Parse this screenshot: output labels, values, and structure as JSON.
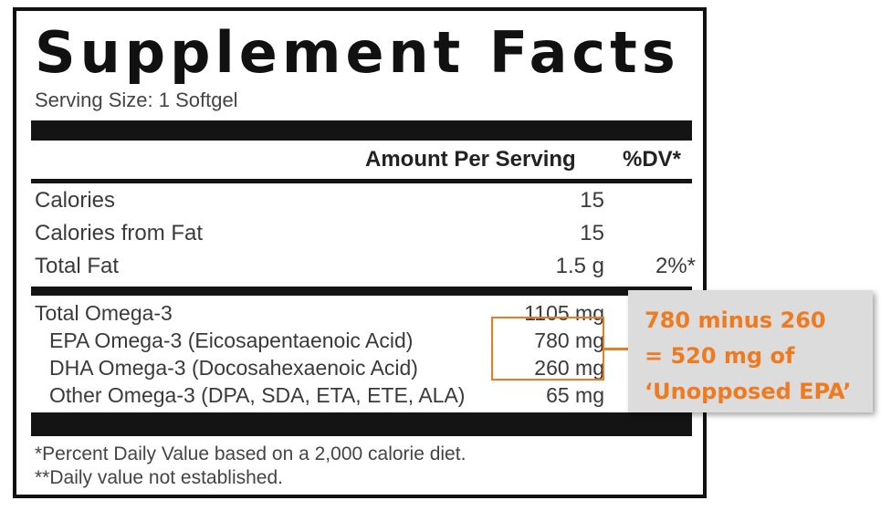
{
  "label": {
    "title": "Supplement Facts",
    "serving_size": "Serving Size: 1 Softgel",
    "header": {
      "amount": "Amount Per Serving",
      "dv": "%DV*"
    },
    "rows": [
      {
        "name": "Calories",
        "amount": "15",
        "dv": ""
      },
      {
        "name": "Calories from Fat",
        "amount": "15",
        "dv": ""
      },
      {
        "name": "Total Fat",
        "amount": "1.5 g",
        "dv": "2%*"
      }
    ],
    "omega": [
      {
        "name": "Total Omega-3",
        "amount": "1105 mg"
      },
      {
        "name": "EPA Omega-3 (Eicosapentaenoic Acid)",
        "amount": "780 mg"
      },
      {
        "name": "DHA Omega-3 (Docosahexaenoic Acid)",
        "amount": "260 mg"
      },
      {
        "name": "Other Omega-3 (DPA, SDA, ETA, ETE, ALA)",
        "amount": "65 mg"
      }
    ],
    "footnotes": [
      "*Percent Daily Value based on a 2,000 calorie diet.",
      "**Daily value not established."
    ]
  },
  "callout": {
    "lines": [
      "780 minus 260",
      "= 520 mg of",
      "‘Unopposed EPA’"
    ],
    "color": "#f07a20"
  }
}
